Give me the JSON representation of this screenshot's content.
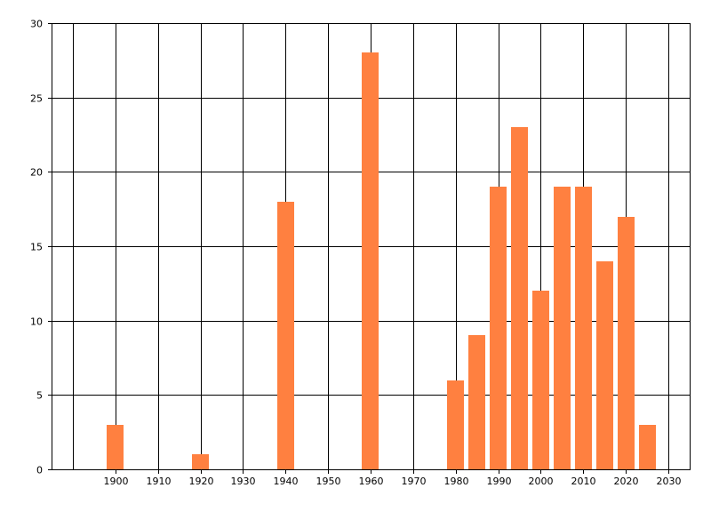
{
  "chart_data": {
    "type": "bar",
    "x": [
      1900,
      1920,
      1940,
      1960,
      1980,
      1985,
      1990,
      1995,
      2000,
      2005,
      2010,
      2015,
      2020,
      2025
    ],
    "values": [
      3,
      1,
      18,
      28,
      6,
      9,
      19,
      23,
      12,
      19,
      19,
      14,
      17,
      3
    ],
    "bar_width": 4,
    "xlim": [
      1885,
      2035
    ],
    "ylim": [
      0,
      30
    ],
    "xticks": [
      1900,
      1910,
      1920,
      1930,
      1940,
      1950,
      1960,
      1970,
      1980,
      1990,
      2000,
      2010,
      2020,
      2030
    ],
    "yticks": [
      0,
      5,
      10,
      15,
      20,
      25,
      30
    ],
    "x_grid": [
      1890,
      1900,
      1910,
      1920,
      1930,
      1940,
      1950,
      1960,
      1970,
      1980,
      1990,
      2000,
      2010,
      2020,
      2030
    ],
    "y_grid": [
      5,
      10,
      15,
      20,
      25,
      30
    ],
    "grid": true,
    "bar_color": "#FF8040",
    "title": "",
    "xlabel": "",
    "ylabel": ""
  }
}
